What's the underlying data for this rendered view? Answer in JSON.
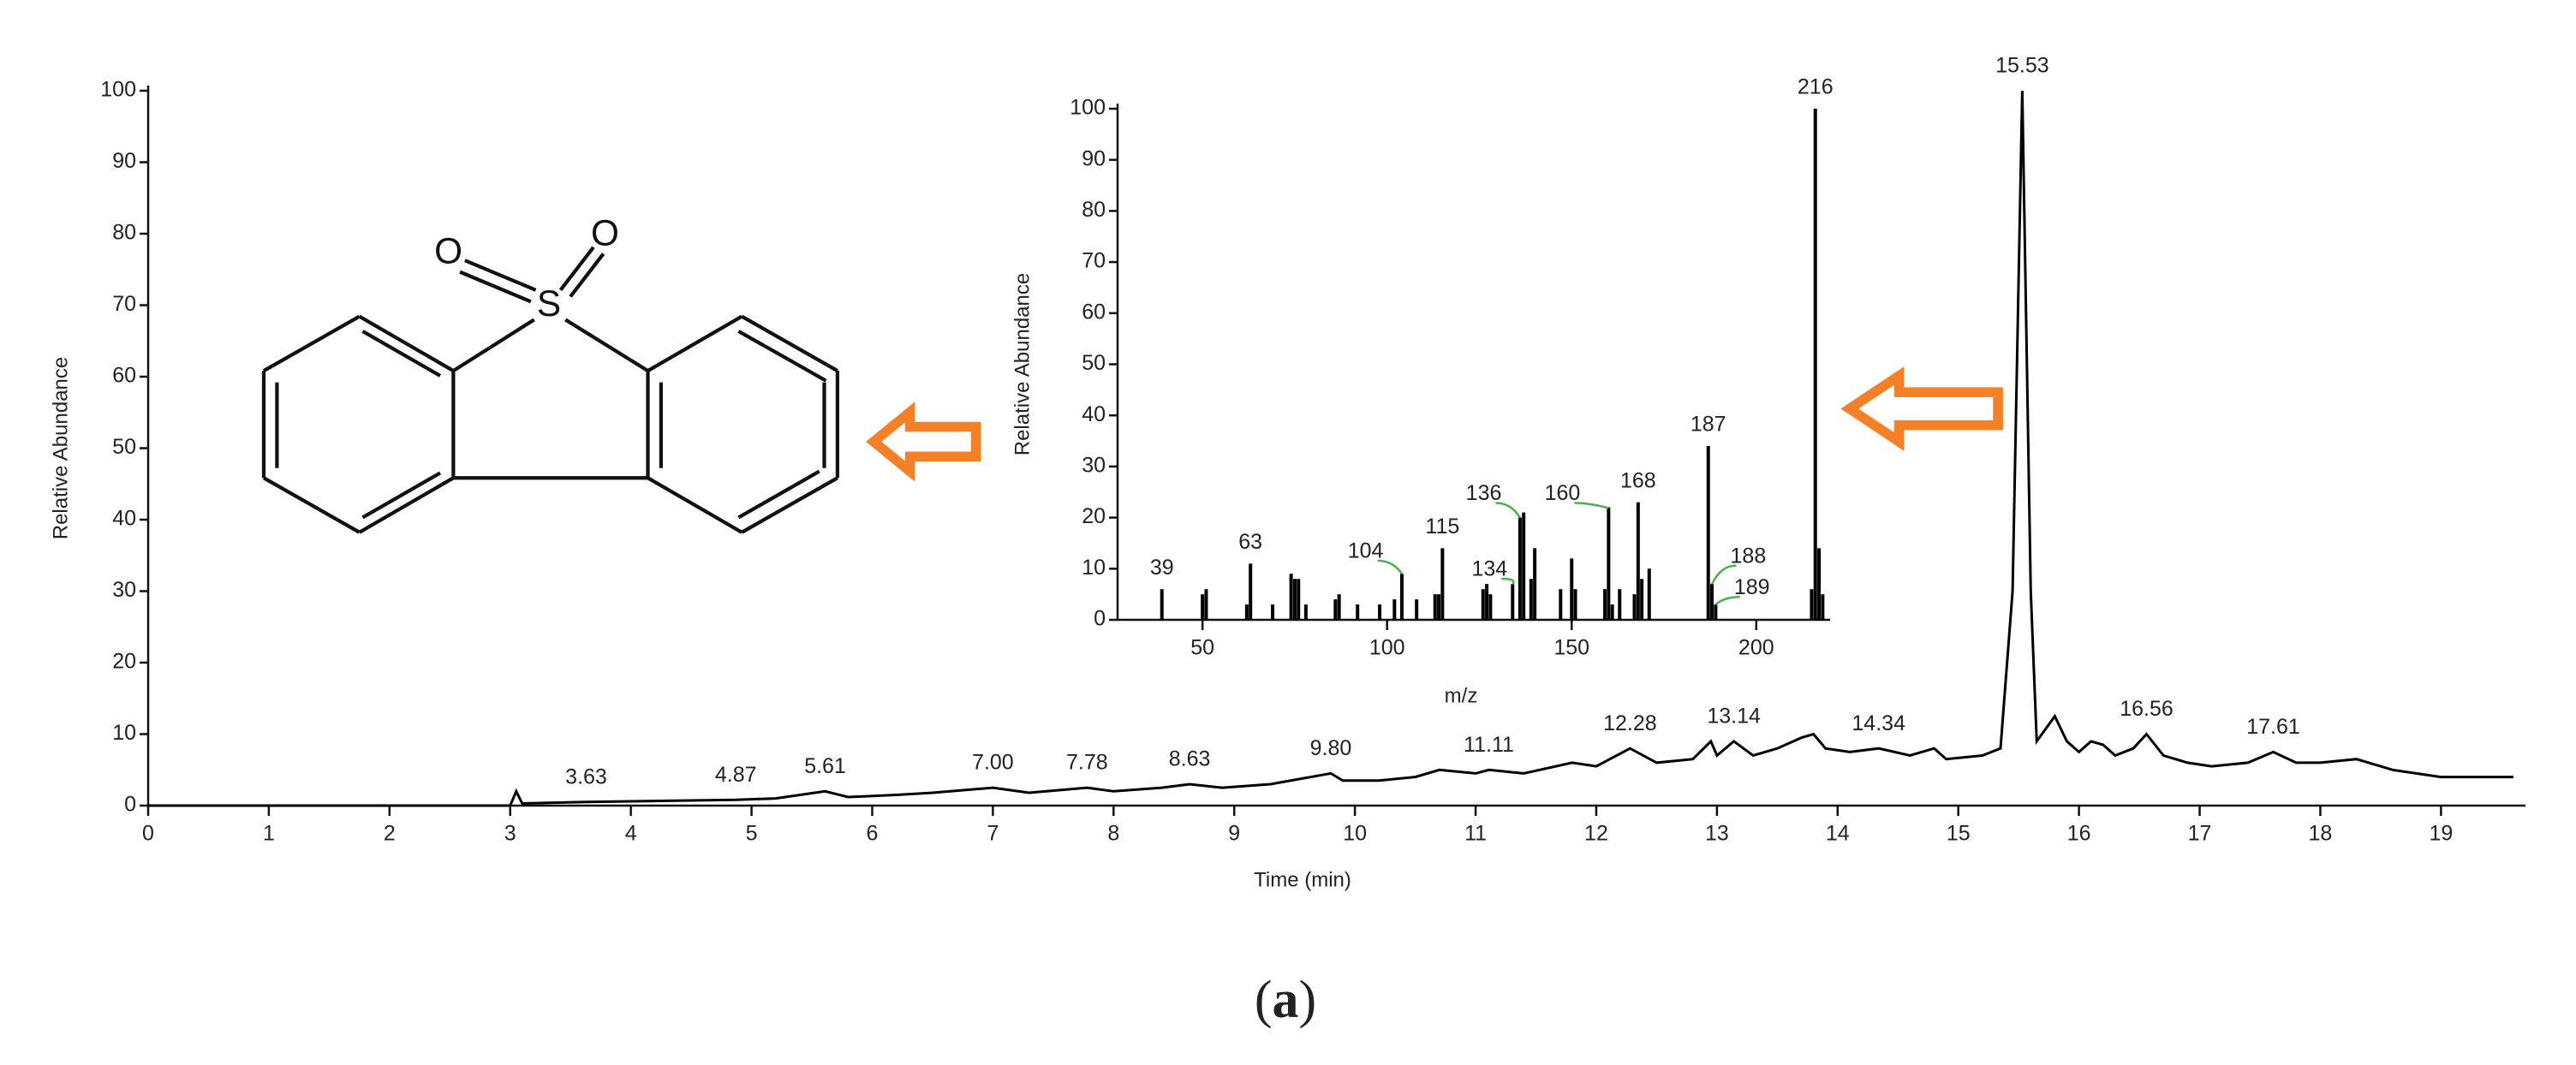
{
  "chart_data": [
    {
      "type": "line",
      "xlabel": "Time (min)",
      "ylabel": "Relative Abundance",
      "xlim": [
        0,
        19.7
      ],
      "xticks": [
        0,
        1,
        2,
        3,
        4,
        5,
        6,
        7,
        8,
        9,
        10,
        11,
        12,
        13,
        14,
        15,
        16,
        17,
        18,
        19
      ],
      "ylim": [
        0,
        100
      ],
      "yticks": [
        0,
        10,
        20,
        30,
        40,
        50,
        60,
        70,
        80,
        90,
        100
      ],
      "color": "#000000",
      "x": [
        0,
        3.0,
        3.05,
        3.1,
        3.63,
        4.0,
        4.87,
        5.2,
        5.61,
        5.8,
        6.2,
        6.5,
        7.0,
        7.3,
        7.78,
        8.0,
        8.4,
        8.63,
        8.9,
        9.3,
        9.8,
        9.9,
        10.2,
        10.5,
        10.7,
        11.0,
        11.11,
        11.4,
        11.8,
        12.0,
        12.28,
        12.5,
        12.8,
        12.95,
        13.0,
        13.14,
        13.3,
        13.5,
        13.7,
        13.8,
        13.9,
        14.1,
        14.34,
        14.6,
        14.8,
        14.9,
        15.2,
        15.35,
        15.45,
        15.53,
        15.6,
        15.65,
        15.8,
        15.9,
        16.0,
        16.1,
        16.2,
        16.3,
        16.45,
        16.56,
        16.7,
        16.9,
        17.1,
        17.4,
        17.61,
        17.8,
        18.0,
        18.3,
        18.6,
        19.0,
        19.3,
        19.6
      ],
      "values": [
        0,
        0,
        2,
        0.3,
        0.5,
        0.6,
        0.8,
        1,
        2,
        1.2,
        1.5,
        1.8,
        2.5,
        1.8,
        2.5,
        2,
        2.5,
        3,
        2.5,
        3,
        4.5,
        3.5,
        3.5,
        4,
        5,
        4.5,
        5,
        4.5,
        6,
        5.5,
        8,
        6,
        6.5,
        9,
        7,
        9,
        7,
        8,
        9.5,
        10,
        8,
        7.5,
        8,
        7,
        8,
        6.5,
        7,
        8,
        30,
        100,
        30,
        9,
        12.5,
        9,
        7.5,
        9,
        8.5,
        7,
        8,
        10,
        7,
        6,
        5.5,
        6,
        7.5,
        6,
        6,
        6.5,
        5,
        4,
        4,
        4
      ],
      "peak_labels": [
        3.63,
        4.87,
        5.61,
        {
          "value": 7,
          "label": "7.00"
        },
        7.78,
        8.63,
        {
          "value": 9.8,
          "label": "9.80"
        },
        11.11,
        12.28,
        13.14,
        14.34,
        15.53,
        16.56,
        17.61
      ]
    },
    {
      "type": "bar",
      "xlabel": "m/z",
      "ylabel": "Relative Abundance",
      "xlim": [
        27,
        220
      ],
      "xticks": [
        50,
        100,
        150,
        200
      ],
      "ylim": [
        0,
        100
      ],
      "yticks": [
        0,
        10,
        20,
        30,
        40,
        50,
        60,
        70,
        80,
        90,
        100
      ],
      "color": "#000000",
      "x": [
        39,
        50,
        51,
        62,
        63,
        69,
        74,
        75,
        76,
        78,
        86,
        87,
        92,
        98,
        102,
        104,
        108,
        113,
        114,
        115,
        126,
        127,
        128,
        134,
        136,
        137,
        139,
        140,
        147,
        150,
        151,
        159,
        160,
        161,
        163,
        167,
        168,
        169,
        171,
        187,
        188,
        189,
        215,
        216,
        217,
        218
      ],
      "values": [
        6,
        5,
        6,
        3,
        11,
        3,
        9,
        8,
        8,
        3,
        4,
        5,
        3,
        3,
        4,
        9,
        4,
        5,
        5,
        14,
        6,
        7,
        5,
        7,
        20,
        21,
        8,
        14,
        6,
        12,
        6,
        6,
        22,
        3,
        6,
        5,
        23,
        8,
        10,
        34,
        7,
        3,
        6,
        100,
        14,
        5
      ],
      "peak_labels": [
        39,
        63,
        104,
        115,
        134,
        136,
        160,
        168,
        187,
        188,
        189,
        216
      ]
    }
  ],
  "structure": {
    "atoms": [
      "O",
      "O",
      "S"
    ]
  },
  "caption": {
    "open": "(",
    "letter": "a",
    "close": ")"
  }
}
